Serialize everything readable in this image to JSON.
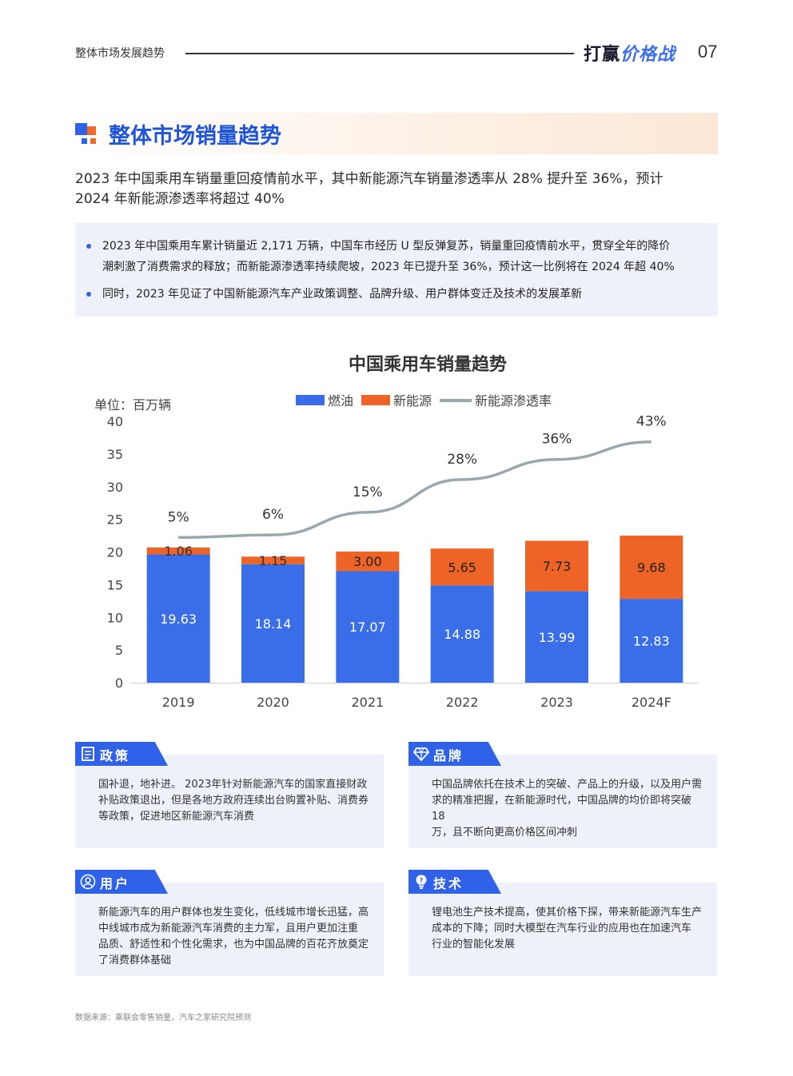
{
  "header": {
    "section": "整体市场发展趋势",
    "brand_part1": "打赢",
    "brand_part2": "价格战",
    "page_number": "07"
  },
  "title": "整体市场销量趋势",
  "lead_lines": [
    "2023 年中国乘用车销量重回疫情前水平，其中新能源汽车销量渗透率从 28% 提升至 36%，预计",
    "2024 年新能源渗透率将超过 40%"
  ],
  "bullets": [
    {
      "line1": "2023 年中国乘用车累计销量近 2,171 万辆，中国车市经历 U 型反弹复苏，销量重回疫情前水平，贯穿全年的降价",
      "line2": "潮刺激了消费需求的释放；而新能源渗透率持续爬坡，2023 年已提升至 36%，预计这一比例将在 2024 年超 40%"
    },
    {
      "line1": "同时，2023 年见证了中国新能源汽车产业政策调整、品牌升级、用户群体变迁及技术的发展革新"
    }
  ],
  "chart_data": {
    "type": "bar",
    "stacked": true,
    "title": "中国乘用车销量趋势",
    "unit_label": "单位：百万辆",
    "categories": [
      "2019",
      "2020",
      "2021",
      "2022",
      "2023",
      "2024F"
    ],
    "ylim": [
      0,
      40
    ],
    "yticks": [
      0,
      5,
      10,
      15,
      20,
      25,
      30,
      35,
      40
    ],
    "legend_position": "top-center",
    "series": [
      {
        "name": "燃油",
        "values": [
          19.63,
          18.14,
          17.07,
          14.88,
          13.99,
          12.83
        ],
        "color": "#3a6de8"
      },
      {
        "name": "新能源",
        "values": [
          1.06,
          1.15,
          3.0,
          5.65,
          7.73,
          9.68
        ],
        "color": "#ee6426"
      }
    ],
    "data_labels": {
      "燃油": [
        "19.63",
        "18.14",
        "17.07",
        "14.88",
        "13.99",
        "12.83"
      ],
      "新能源": [
        "1.06",
        "1.15",
        "3.00",
        "5.65",
        "7.73",
        "9.68"
      ]
    },
    "line_series": {
      "name": "新能源渗透率",
      "color": "#9aa8ad",
      "values": [
        5,
        6,
        15,
        28,
        36,
        43
      ],
      "labels": [
        "5%",
        "6%",
        "15%",
        "28%",
        "36%",
        "43%"
      ]
    }
  },
  "cards": [
    {
      "label": "政策",
      "icon": "document-icon",
      "lines": [
        "国补退，地补进。 2023年针对新能源汽车的国家直接财政",
        "补贴政策退出，但是各地方政府连续出台购置补贴、消费券",
        "等政策，促进地区新能源汽车消费"
      ]
    },
    {
      "label": "品牌",
      "icon": "diamond-icon",
      "lines": [
        "中国品牌依托在技术上的突破、产品上的升级，以及用户需",
        "求的精准把握，在新能源时代，中国品牌的均价即将突破18",
        "万，且不断向更高价格区间冲刺"
      ]
    },
    {
      "label": "用户",
      "icon": "user-icon",
      "lines": [
        "新能源汽车的用户群体也发生变化，低线城市增长迅猛，高",
        "中线城市成为新能源汽车消费的主力军，且用户更加注重",
        "品质、舒适性和个性化需求，也为中国品牌的百花齐放奠定",
        "了消费群体基础"
      ]
    },
    {
      "label": "技术",
      "icon": "lightbulb-icon",
      "lines": [
        "锂电池生产技术提高，使其价格下探，带来新能源汽车生产",
        "成本的下降；同时大模型在汽车行业的应用也在加速汽车",
        "行业的智能化发展"
      ]
    }
  ],
  "source": "数据来源：乘联会零售销量，汽车之家研究院预测"
}
